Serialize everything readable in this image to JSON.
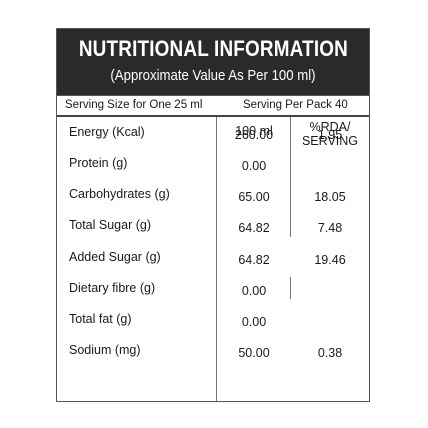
{
  "header": {
    "title": "NUTRITIONAL INFORMATION",
    "subtitle": "(Approximate Value As Per 100 ml)"
  },
  "serving": {
    "size": "Serving Size for One 25 ml",
    "per_pack": "Serving Per Pack 40"
  },
  "columns": {
    "per_100ml": "100 ml",
    "rda_line1": "%RDA/",
    "rda_line2": "SERVING"
  },
  "rows": [
    {
      "label": "Energy (Kcal)",
      "value": "260.00",
      "rda": "1.95"
    },
    {
      "label": "Protein (g)",
      "value": "0.00",
      "rda": ""
    },
    {
      "label": "Carbohydrates (g)",
      "value": "65.00",
      "rda": "18.05"
    },
    {
      "label": "Total Sugar (g)",
      "value": "64.82",
      "rda": "7.48"
    },
    {
      "label": "Added Sugar (g)",
      "value": "64.82",
      "rda": "19.46"
    },
    {
      "label": "Dietary fibre (g)",
      "value": "0.00",
      "rda": ""
    },
    {
      "label": "Total fat (g)",
      "value": "0.00",
      "rda": ""
    },
    {
      "label": "Sodium (mg)",
      "value": "50.00",
      "rda": "0.38"
    }
  ]
}
